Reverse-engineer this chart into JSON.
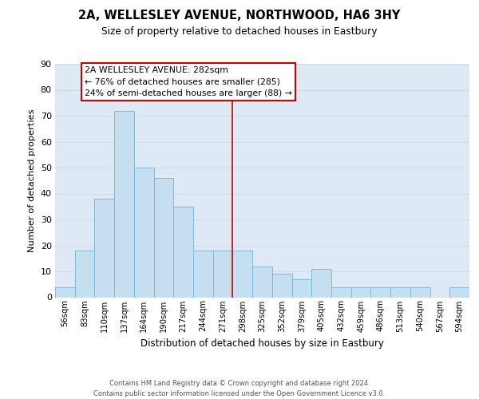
{
  "title": "2A, WELLESLEY AVENUE, NORTHWOOD, HA6 3HY",
  "subtitle": "Size of property relative to detached houses in Eastbury",
  "xlabel": "Distribution of detached houses by size in Eastbury",
  "ylabel": "Number of detached properties",
  "bar_labels": [
    "56sqm",
    "83sqm",
    "110sqm",
    "137sqm",
    "164sqm",
    "190sqm",
    "217sqm",
    "244sqm",
    "271sqm",
    "298sqm",
    "325sqm",
    "352sqm",
    "379sqm",
    "405sqm",
    "432sqm",
    "459sqm",
    "486sqm",
    "513sqm",
    "540sqm",
    "567sqm",
    "594sqm"
  ],
  "bar_values": [
    4,
    18,
    38,
    72,
    50,
    46,
    35,
    18,
    18,
    18,
    12,
    9,
    7,
    11,
    4,
    4,
    4,
    4,
    4,
    0,
    4
  ],
  "bar_color": "#c5dff0",
  "bar_edge_color": "#7fb8d8",
  "grid_color": "#d0dde8",
  "bg_color": "#ddeaf5",
  "ylim": [
    0,
    90
  ],
  "yticks": [
    0,
    10,
    20,
    30,
    40,
    50,
    60,
    70,
    80,
    90
  ],
  "vline_x": 8.5,
  "vline_color": "#cc0000",
  "annotation_title": "2A WELLESLEY AVENUE: 282sqm",
  "annotation_line1": "← 76% of detached houses are smaller (285)",
  "annotation_line2": "24% of semi-detached houses are larger (88) →",
  "annotation_box_color": "#ffffff",
  "annotation_box_edge": "#cc0000",
  "footer_line1": "Contains HM Land Registry data © Crown copyright and database right 2024.",
  "footer_line2": "Contains public sector information licensed under the Open Government Licence v3.0."
}
